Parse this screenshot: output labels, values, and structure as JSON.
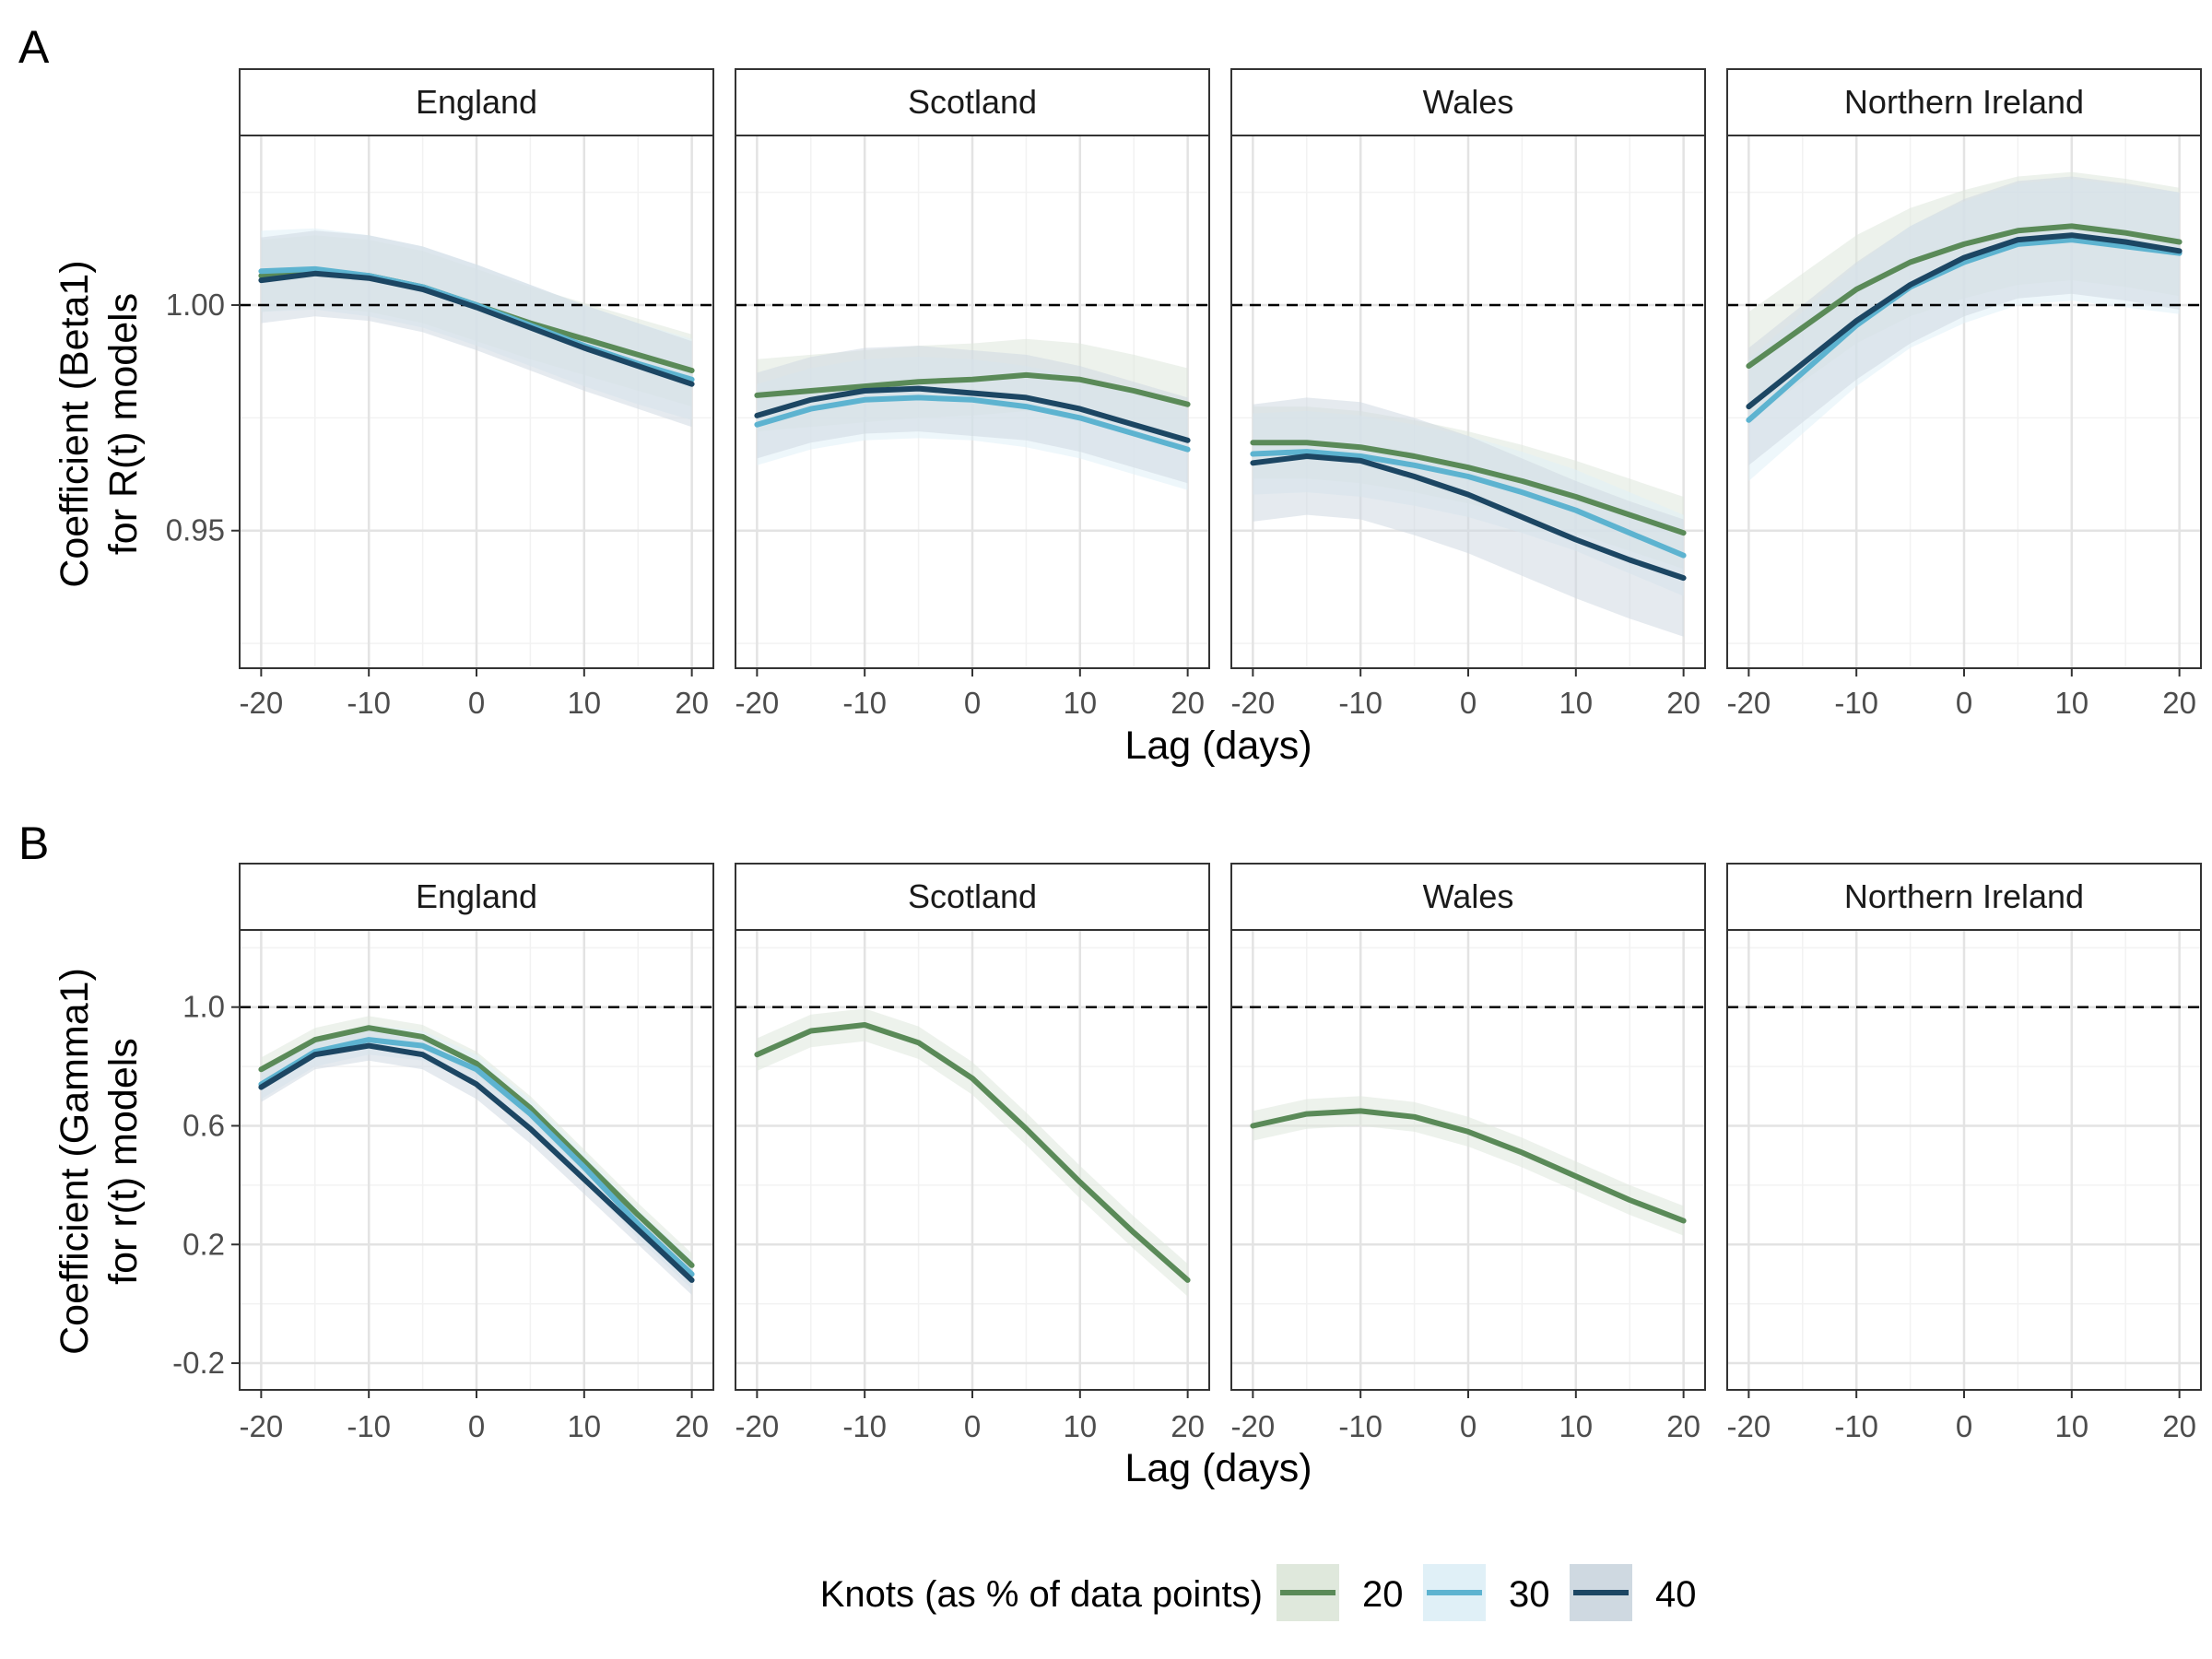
{
  "figure": {
    "panels": [
      {
        "letter": "A",
        "ylabel_lines": [
          "Coefficient (Beta1)",
          "for R(t) models"
        ],
        "xlabel": "Lag (days)"
      },
      {
        "letter": "B",
        "ylabel_lines": [
          "Coefficient (Gamma1)",
          "for r(t) models"
        ],
        "xlabel": "Lag (days)"
      }
    ],
    "legend": {
      "title": "Knots (as % of data points)",
      "entries": [
        {
          "label": "20",
          "color": "#5a8a58",
          "band": "#dfe8dc"
        },
        {
          "label": "30",
          "color": "#5db3d0",
          "band": "#e0f0f7"
        },
        {
          "label": "40",
          "color": "#1c4663",
          "band": "#cfd9e1"
        }
      ]
    }
  },
  "chart_data": [
    {
      "type": "line",
      "panel": "A",
      "reference_line": 1.0,
      "ylim": [
        0.9195,
        1.0376
      ],
      "xlim": [
        -22,
        22
      ],
      "x_ticks": [
        -20,
        -10,
        0,
        10,
        20
      ],
      "y_ticks": [
        0.95,
        1.0
      ],
      "y_tick_labels": [
        "0.95",
        "1.00"
      ],
      "grid": true,
      "x": [
        -20,
        -15,
        -10,
        -5,
        0,
        5,
        10,
        15,
        20
      ],
      "facets": [
        {
          "name": "England",
          "series": [
            {
              "name": "20",
              "values": [
                1.0065,
                1.0075,
                1.0065,
                1.004,
                1.0,
                0.996,
                0.9925,
                0.989,
                0.9855
              ],
              "hw": 0.008
            },
            {
              "name": "30",
              "values": [
                1.0075,
                1.008,
                1.0065,
                1.004,
                1.0,
                0.9955,
                0.991,
                0.987,
                0.9835
              ],
              "hw": 0.009
            },
            {
              "name": "40",
              "values": [
                1.0055,
                1.007,
                1.006,
                1.0035,
                0.9995,
                0.995,
                0.9905,
                0.9865,
                0.9825
              ],
              "hw": 0.0095
            }
          ]
        },
        {
          "name": "Scotland",
          "series": [
            {
              "name": "20",
              "values": [
                0.98,
                0.981,
                0.982,
                0.983,
                0.9835,
                0.9845,
                0.9835,
                0.981,
                0.978
              ],
              "hw": 0.008
            },
            {
              "name": "30",
              "values": [
                0.9735,
                0.977,
                0.979,
                0.9795,
                0.979,
                0.9775,
                0.975,
                0.9715,
                0.968
              ],
              "hw": 0.009
            },
            {
              "name": "40",
              "values": [
                0.9755,
                0.979,
                0.981,
                0.9815,
                0.9805,
                0.9795,
                0.977,
                0.9735,
                0.97
              ],
              "hw": 0.0095
            }
          ]
        },
        {
          "name": "Wales",
          "series": [
            {
              "name": "20",
              "values": [
                0.9695,
                0.9695,
                0.9685,
                0.9665,
                0.964,
                0.961,
                0.9575,
                0.9535,
                0.9495
              ],
              "hw": 0.008
            },
            {
              "name": "30",
              "values": [
                0.967,
                0.9675,
                0.9665,
                0.9645,
                0.962,
                0.9585,
                0.9545,
                0.9495,
                0.9445
              ],
              "hw": 0.009
            },
            {
              "name": "40",
              "values": [
                0.965,
                0.9665,
                0.9655,
                0.962,
                0.958,
                0.953,
                0.948,
                0.9435,
                0.9395
              ],
              "hw": 0.013
            }
          ]
        },
        {
          "name": "Northern Ireland",
          "series": [
            {
              "name": "20",
              "values": [
                0.9865,
                0.995,
                1.0035,
                1.0095,
                1.0135,
                1.0165,
                1.0175,
                1.016,
                1.014
              ],
              "hw": 0.012
            },
            {
              "name": "30",
              "values": [
                0.9745,
                0.985,
                0.9955,
                1.004,
                1.0095,
                1.0135,
                1.0145,
                1.013,
                1.0115
              ],
              "hw": 0.0135
            },
            {
              "name": "40",
              "values": [
                0.9775,
                0.987,
                0.9965,
                1.0045,
                1.0105,
                1.0145,
                1.0155,
                1.014,
                1.012
              ],
              "hw": 0.013
            }
          ]
        }
      ]
    },
    {
      "type": "line",
      "panel": "B",
      "reference_line": 1.0,
      "ylim": [
        -0.29,
        1.26
      ],
      "xlim": [
        -22,
        22
      ],
      "x_ticks": [
        -20,
        -10,
        0,
        10,
        20
      ],
      "y_ticks": [
        -0.2,
        0.2,
        0.6,
        1.0
      ],
      "y_tick_labels": [
        "-0.2",
        "0.2",
        "0.6",
        "1.0"
      ],
      "grid": true,
      "x": [
        -20,
        -15,
        -10,
        -5,
        0,
        5,
        10,
        15,
        20
      ],
      "facets": [
        {
          "name": "England",
          "series": [
            {
              "name": "20",
              "values": [
                0.79,
                0.89,
                0.93,
                0.9,
                0.81,
                0.66,
                0.48,
                0.3,
                0.13
              ],
              "hw": 0.04
            },
            {
              "name": "30",
              "values": [
                0.74,
                0.85,
                0.89,
                0.87,
                0.79,
                0.64,
                0.46,
                0.27,
                0.1
              ],
              "hw": 0.05
            },
            {
              "name": "40",
              "values": [
                0.73,
                0.84,
                0.87,
                0.84,
                0.74,
                0.59,
                0.42,
                0.25,
                0.08
              ],
              "hw": 0.05
            }
          ]
        },
        {
          "name": "Scotland",
          "series": [
            {
              "name": "20",
              "values": [
                0.84,
                0.92,
                0.94,
                0.88,
                0.76,
                0.59,
                0.41,
                0.24,
                0.08
              ],
              "hw": 0.055
            }
          ]
        },
        {
          "name": "Wales",
          "series": [
            {
              "name": "20",
              "values": [
                0.6,
                0.64,
                0.65,
                0.63,
                0.58,
                0.51,
                0.43,
                0.35,
                0.28
              ],
              "hw": 0.05
            }
          ]
        },
        {
          "name": "Northern Ireland",
          "series": []
        }
      ]
    }
  ]
}
